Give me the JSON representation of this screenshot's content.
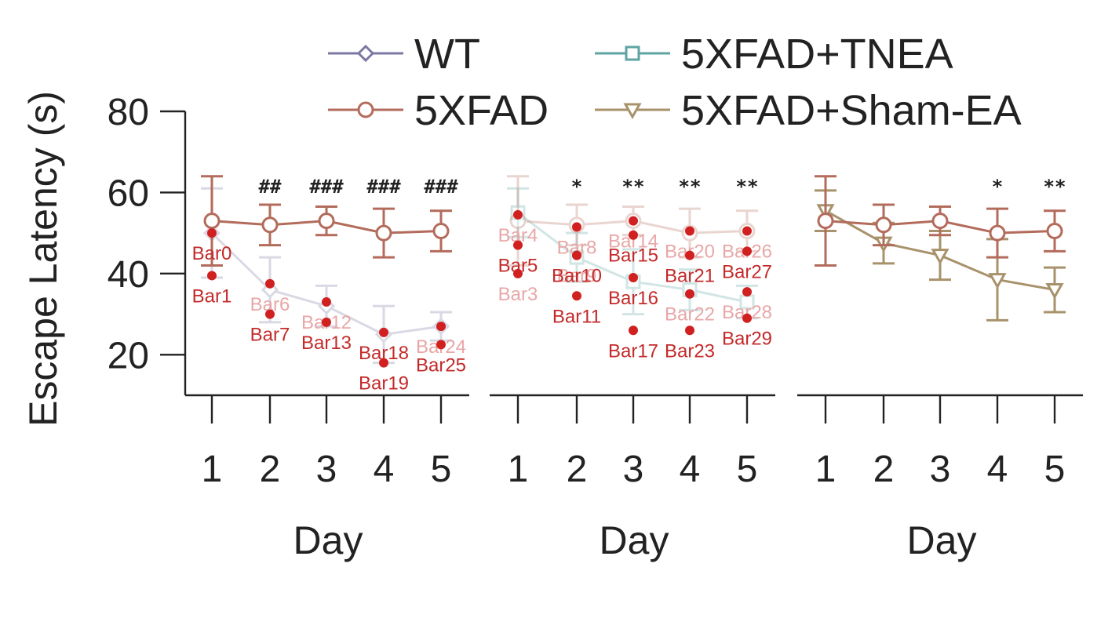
{
  "chart_data": {
    "type": "line",
    "ylabel": "Escape Latency (s)",
    "xlabel": "Day",
    "ylim": [
      10,
      80
    ],
    "y_ticks": [
      20,
      40,
      60,
      80
    ],
    "categories": [
      "1",
      "2",
      "3",
      "4",
      "5"
    ],
    "legend": {
      "placement": "top",
      "entries": [
        {
          "name": "WT",
          "marker": "diamond",
          "color": "#7b79a3"
        },
        {
          "name": "5XFAD+TNEA",
          "marker": "square",
          "color": "#5fa3a3"
        },
        {
          "name": "5XFAD",
          "marker": "circle",
          "color": "#b36b5b"
        },
        {
          "name": "5XFAD+Sham-EA",
          "marker": "triangle-down",
          "color": "#a8926b"
        }
      ]
    },
    "panels": [
      {
        "xlabel": "Day",
        "significance": [
          "",
          "##",
          "###",
          "###",
          "###"
        ],
        "series": [
          {
            "name": "WT",
            "marker": "diamond",
            "color": "#7b79a3",
            "values": [
              50,
              36,
              32,
              25,
              27
            ],
            "err": [
              11,
              8,
              5,
              7,
              3.5
            ],
            "faded": true
          },
          {
            "name": "5XFAD",
            "marker": "circle",
            "color": "#b36b5b",
            "values": [
              53,
              52,
              53,
              50,
              50.5
            ],
            "err": [
              11,
              5,
              3.5,
              6,
              5
            ]
          }
        ]
      },
      {
        "xlabel": "Day",
        "significance": [
          "",
          "*",
          "**",
          "**",
          "**"
        ],
        "series": [
          {
            "name": "5XFAD+TNEA",
            "marker": "square",
            "color": "#5fa3a3",
            "values": [
              55,
              44,
              38,
              36,
              33
            ],
            "err": [
              6,
              6,
              8,
              5,
              4
            ],
            "faded": true
          },
          {
            "name": "5XFAD",
            "marker": "circle",
            "color": "#b36b5b",
            "values": [
              53,
              52,
              53,
              50,
              50.5
            ],
            "err": [
              11,
              5,
              3.5,
              6,
              5
            ],
            "faded": true
          }
        ]
      },
      {
        "xlabel": "Day",
        "significance": [
          "",
          "",
          "",
          "*",
          "**"
        ],
        "series": [
          {
            "name": "5XFAD+Sham-EA",
            "marker": "triangle-down",
            "color": "#a8926b",
            "values": [
              55.5,
              47.5,
              44.5,
              38.5,
              36
            ],
            "err": [
              5,
              5,
              6,
              10,
              5.5
            ]
          },
          {
            "name": "5XFAD",
            "marker": "circle",
            "color": "#b36b5b",
            "values": [
              53,
              52,
              53,
              50,
              50.5
            ],
            "err": [
              11,
              5,
              3.5,
              6,
              5
            ]
          }
        ]
      }
    ],
    "annotations": [
      {
        "label": "Bar0",
        "panel": 0,
        "x": "1",
        "y": 50
      },
      {
        "label": "Bar1",
        "panel": 0,
        "x": "1",
        "y": 39.5
      },
      {
        "label": "Bar6",
        "panel": 0,
        "x": "2",
        "y": 37.5,
        "faded": true
      },
      {
        "label": "Bar7",
        "panel": 0,
        "x": "2",
        "y": 30
      },
      {
        "label": "Bar12",
        "panel": 0,
        "x": "3",
        "y": 33,
        "faded": true
      },
      {
        "label": "Bar13",
        "panel": 0,
        "x": "3",
        "y": 28
      },
      {
        "label": "Bar18",
        "panel": 0,
        "x": "4",
        "y": 25.5
      },
      {
        "label": "Bar19",
        "panel": 0,
        "x": "4",
        "y": 18
      },
      {
        "label": "Bar24",
        "panel": 0,
        "x": "5",
        "y": 27,
        "faded": true
      },
      {
        "label": "Bar25",
        "panel": 0,
        "x": "5",
        "y": 22.5
      },
      {
        "label": "Bar4",
        "panel": 1,
        "x": "1",
        "y": 54.5,
        "faded": true
      },
      {
        "label": "Bar5",
        "panel": 1,
        "x": "1",
        "y": 47
      },
      {
        "label": "Bar3",
        "panel": 1,
        "x": "1",
        "y": 40,
        "faded": true
      },
      {
        "label": "Bar8",
        "panel": 1,
        "x": "2",
        "y": 51.5,
        "faded": true
      },
      {
        "label": "Bar9",
        "panel": 1,
        "x": "2",
        "y": 44.5,
        "faded": true
      },
      {
        "label": "Bar10",
        "panel": 1,
        "x": "2",
        "y": 44.5
      },
      {
        "label": "Bar11",
        "panel": 1,
        "x": "2",
        "y": 34.5
      },
      {
        "label": "Bar14",
        "panel": 1,
        "x": "3",
        "y": 53,
        "faded": true
      },
      {
        "label": "Bar15",
        "panel": 1,
        "x": "3",
        "y": 49.5
      },
      {
        "label": "Bar16",
        "panel": 1,
        "x": "3",
        "y": 39
      },
      {
        "label": "Bar17",
        "panel": 1,
        "x": "3",
        "y": 26
      },
      {
        "label": "Bar20",
        "panel": 1,
        "x": "4",
        "y": 50.5,
        "faded": true
      },
      {
        "label": "Bar21",
        "panel": 1,
        "x": "4",
        "y": 44.5
      },
      {
        "label": "Bar22",
        "panel": 1,
        "x": "4",
        "y": 35,
        "faded": true
      },
      {
        "label": "Bar23",
        "panel": 1,
        "x": "4",
        "y": 26
      },
      {
        "label": "Bar26",
        "panel": 1,
        "x": "5",
        "y": 50.5,
        "faded": true
      },
      {
        "label": "Bar27",
        "panel": 1,
        "x": "5",
        "y": 45.5
      },
      {
        "label": "Bar28",
        "panel": 1,
        "x": "5",
        "y": 35.5,
        "faded": true
      },
      {
        "label": "Bar29",
        "panel": 1,
        "x": "5",
        "y": 29
      }
    ]
  }
}
